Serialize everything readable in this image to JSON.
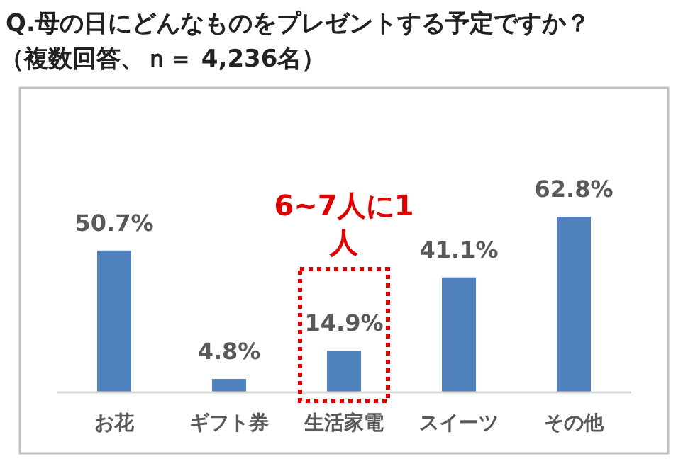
{
  "chart_data": {
    "type": "bar",
    "title": "Q.母の日にどんなものをプレゼントする予定ですか？",
    "subtitle": "（複数回答、ｎ＝ 4,236名）",
    "categories": [
      "お花",
      "ギフト券",
      "生活家電",
      "スイーツ",
      "その他"
    ],
    "values": [
      50.7,
      4.8,
      14.9,
      41.1,
      62.8
    ],
    "color": "#4f81bd",
    "value_labels": [
      "50.7%",
      "4.8%",
      "14.9%",
      "41.1%",
      "62.8%"
    ],
    "annotations": [
      "6~7人に1人"
    ]
  }
}
